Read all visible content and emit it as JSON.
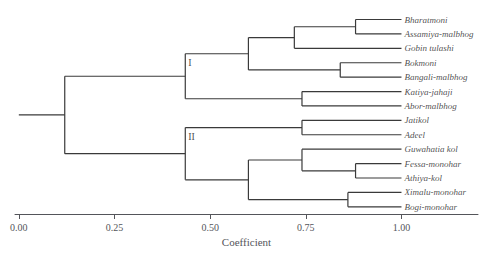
{
  "chart_data": {
    "type": "dendrogram",
    "xlabel": "Coefficient",
    "xlim": [
      -0.01,
      1.2
    ],
    "xticks": [
      {
        "value": 0.0,
        "label": "0.00"
      },
      {
        "value": 0.25,
        "label": "0.25"
      },
      {
        "value": 0.5,
        "label": "0.50"
      },
      {
        "value": 0.75,
        "label": "0.75"
      },
      {
        "value": 1.0,
        "label": "1.00"
      }
    ],
    "grid": false,
    "color": "#3a3a3a",
    "leaf_x": 1.0,
    "tree": {
      "x": 0.0,
      "children": [
        {
          "x": 0.12,
          "children": [
            {
              "x": 0.435,
              "label": "I",
              "children": [
                {
                  "x": 0.6,
                  "children": [
                    {
                      "x": 0.72,
                      "children": [
                        {
                          "x": 0.88,
                          "children": [
                            "Bharatmoni",
                            "Assamiya-malbhog"
                          ]
                        },
                        "Gobin tulashi"
                      ]
                    },
                    {
                      "x": 0.84,
                      "children": [
                        "Bokmoni",
                        "Bangali-malbhog"
                      ]
                    }
                  ]
                },
                {
                  "x": 0.74,
                  "children": [
                    "Katiya-jahaji",
                    "Abor-malbhog"
                  ]
                }
              ]
            },
            {
              "x": 0.435,
              "label": "II",
              "children": [
                {
                  "x": 0.74,
                  "children": [
                    "Jatikol",
                    "Adeel"
                  ]
                },
                {
                  "x": 0.6,
                  "children": [
                    {
                      "x": 0.74,
                      "children": [
                        "Guwahatia kol",
                        {
                          "x": 0.88,
                          "children": [
                            "Fessa-monohar",
                            "Athiya-kol"
                          ]
                        }
                      ]
                    },
                    {
                      "x": 0.86,
                      "children": [
                        "Ximalu-monohar",
                        "Bogi-monohar"
                      ]
                    }
                  ]
                }
              ]
            }
          ]
        }
      ]
    }
  }
}
